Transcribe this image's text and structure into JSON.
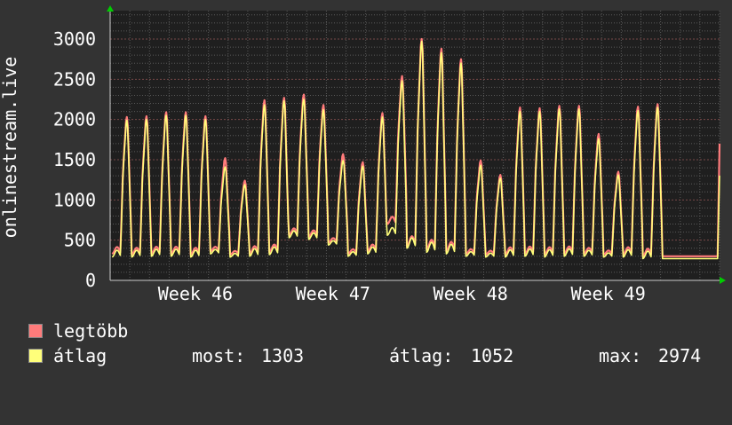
{
  "colors": {
    "background": "#333333",
    "plot_background": "#1f1f1f",
    "grid": "#5a5a5a",
    "max_series": "#ff7b7b",
    "avg_series": "#ffff7a",
    "axis_arrow": "#00cc00"
  },
  "legend": {
    "max_label": "legtöbb",
    "avg_label": "átlag",
    "now_label": "most:",
    "now_value": "1303",
    "avg_stat_label": "átlag:",
    "avg_stat_value": "1052",
    "max_stat_label": "max:",
    "max_stat_value": "2974"
  },
  "chart_data": {
    "type": "line",
    "ylabel": "onlinestream.live",
    "ylim": [
      0,
      3000
    ],
    "yticks": [
      0,
      500,
      1000,
      1500,
      2000,
      2500,
      3000
    ],
    "x_tick_labels": [
      "Week 46",
      "Week 47",
      "Week 48",
      "Week 49"
    ],
    "xlim_days": [
      0,
      31
    ],
    "x_tick_positions_days": [
      2.3,
      9.3,
      16.3,
      23.3
    ],
    "grid": true,
    "series": [
      {
        "name": "legtöbb",
        "color": "#ff7b7b",
        "daily_peaks": [
          2030,
          2040,
          2090,
          2090,
          2040,
          1520,
          1240,
          2240,
          2270,
          2310,
          2180,
          1570,
          1470,
          2080,
          2540,
          3000,
          2880,
          2750,
          1490,
          1310,
          2150,
          2140,
          2170,
          2170,
          1820,
          1350,
          2160,
          2190
        ],
        "daily_troughs": [
          330,
          320,
          330,
          330,
          320,
          360,
          320,
          330,
          350,
          560,
          540,
          470,
          330,
          360,
          700,
          420,
          380,
          360,
          330,
          320,
          320,
          330,
          320,
          330,
          330,
          320,
          320,
          300
        ],
        "last_value": 1700
      },
      {
        "name": "átlag",
        "color": "#ffff7a",
        "daily_peaks": [
          1990,
          2000,
          2050,
          2050,
          2000,
          1410,
          1190,
          2180,
          2230,
          2250,
          2120,
          1490,
          1420,
          2030,
          2480,
          2970,
          2830,
          2700,
          1430,
          1270,
          2100,
          2100,
          2130,
          2130,
          1760,
          1310,
          2110,
          2150
        ],
        "daily_troughs": [
          290,
          290,
          300,
          300,
          290,
          330,
          290,
          300,
          320,
          530,
          510,
          440,
          300,
          330,
          560,
          400,
          350,
          330,
          300,
          290,
          290,
          300,
          290,
          300,
          300,
          290,
          290,
          270
        ],
        "last_value": 1303
      }
    ]
  }
}
